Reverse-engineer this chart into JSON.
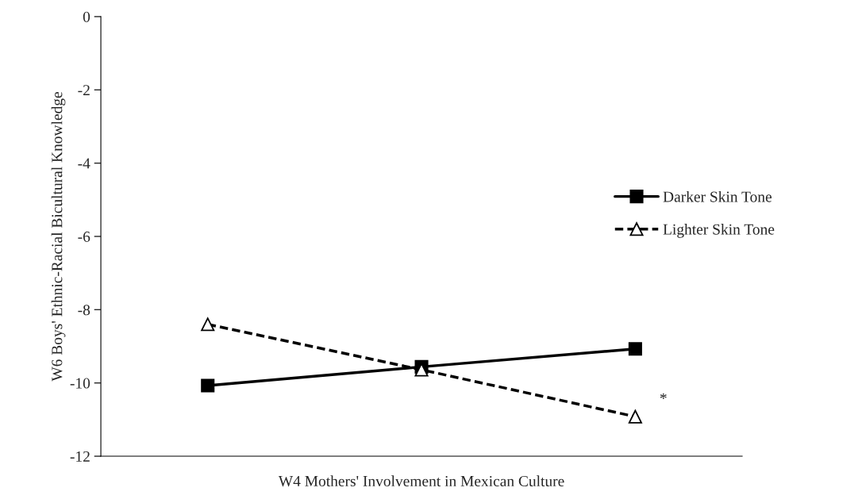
{
  "chart_data": {
    "type": "line",
    "xlabel": "W4 Mothers' Involvement in Mexican Culture",
    "ylabel": "W6 Boys' Ethnic-Racial Bicultural Knowledge",
    "categories": [
      null,
      null,
      null
    ],
    "series": [
      {
        "name": "Darker Skin Tone",
        "color": "#000000",
        "values": [
          -10.07,
          -9.56,
          -9.07
        ],
        "marker": "square",
        "line_style": "solid"
      },
      {
        "name": "Lighter Skin Tone",
        "color": "#000000",
        "values": [
          -8.4,
          -9.64,
          -10.92
        ],
        "marker": "triangle",
        "line_style": "dashed"
      }
    ],
    "ylim": [
      -12,
      0
    ],
    "yticks": [
      -12,
      -10,
      -8,
      -6,
      -4,
      -2,
      0
    ],
    "grid": false,
    "legend": "right",
    "annotations": [
      "*"
    ]
  }
}
